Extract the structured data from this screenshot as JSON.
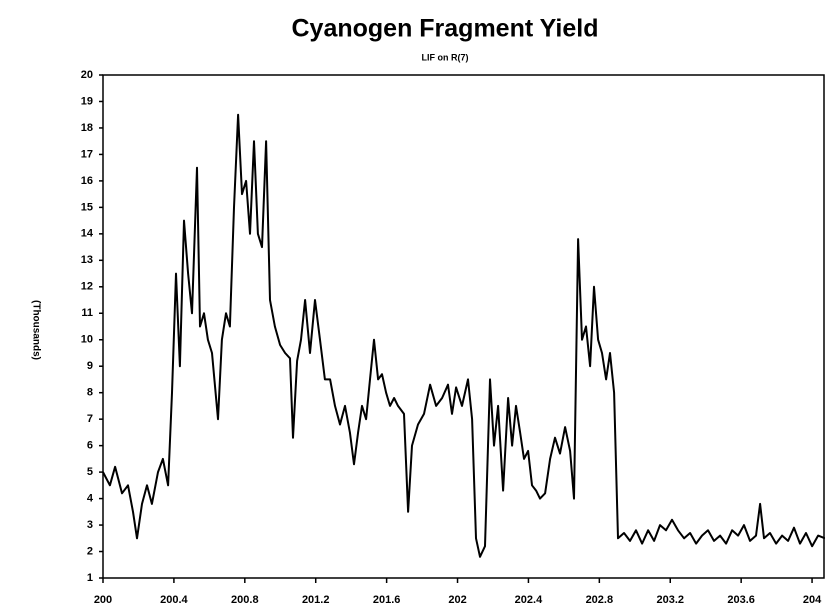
{
  "chart_data": {
    "type": "line",
    "title": "Cyanogen Fragment Yield",
    "subtitle": "LIF on R(7)",
    "y_label": "(Thousands)",
    "xlim": [
      200,
      204.073
    ],
    "ylim": [
      1,
      20
    ],
    "xticks": [
      200,
      200.4,
      200.8,
      201.2,
      201.6,
      202,
      202.4,
      202.8,
      203.2,
      203.6,
      204
    ],
    "yticks": [
      1,
      2,
      3,
      4,
      5,
      6,
      7,
      8,
      9,
      10,
      11,
      12,
      13,
      14,
      15,
      16,
      17,
      18,
      19,
      20
    ],
    "series": [
      {
        "color": "#000000",
        "x": [
          200.0,
          200.039,
          200.068,
          200.107,
          200.141,
          200.169,
          200.192,
          200.22,
          200.248,
          200.276,
          200.31,
          200.338,
          200.367,
          200.389,
          200.412,
          200.434,
          200.457,
          200.48,
          200.502,
          200.53,
          200.547,
          200.57,
          200.592,
          200.615,
          200.649,
          200.671,
          200.694,
          200.716,
          200.739,
          200.762,
          200.784,
          200.807,
          200.829,
          200.852,
          200.874,
          200.897,
          200.92,
          200.942,
          200.97,
          200.999,
          201.027,
          201.055,
          201.072,
          201.095,
          201.117,
          201.14,
          201.168,
          201.196,
          201.224,
          201.252,
          201.281,
          201.309,
          201.337,
          201.365,
          201.393,
          201.416,
          201.439,
          201.461,
          201.484,
          201.506,
          201.529,
          201.552,
          201.574,
          201.597,
          201.619,
          201.642,
          201.664,
          201.698,
          201.721,
          201.743,
          201.777,
          201.811,
          201.845,
          201.879,
          201.913,
          201.946,
          201.969,
          201.992,
          202.025,
          202.059,
          202.082,
          202.104,
          202.127,
          202.155,
          202.183,
          202.206,
          202.229,
          202.257,
          202.285,
          202.308,
          202.33,
          202.353,
          202.375,
          202.398,
          202.42,
          202.443,
          202.465,
          202.494,
          202.522,
          202.55,
          202.578,
          202.607,
          202.635,
          202.657,
          202.68,
          202.702,
          202.725,
          202.748,
          202.77,
          202.793,
          202.815,
          202.838,
          202.86,
          202.883,
          202.905,
          202.939,
          202.973,
          203.007,
          203.041,
          203.075,
          203.109,
          203.142,
          203.176,
          203.21,
          203.244,
          203.278,
          203.312,
          203.346,
          203.379,
          203.413,
          203.447,
          203.481,
          203.515,
          203.549,
          203.583,
          203.616,
          203.65,
          203.684,
          203.707,
          203.729,
          203.763,
          203.797,
          203.831,
          203.865,
          203.898,
          203.932,
          203.966,
          204.0,
          204.034,
          204.073
        ],
        "values": [
          5,
          4.5,
          5.2,
          4.2,
          4.5,
          3.5,
          2.5,
          3.8,
          4.5,
          3.8,
          5,
          5.5,
          4.5,
          8,
          12.5,
          9,
          14.5,
          12.5,
          11,
          16.5,
          10.5,
          11,
          10,
          9.5,
          7,
          10,
          11,
          10.5,
          15,
          18.5,
          15.5,
          16,
          14,
          17.5,
          14,
          13.5,
          17.5,
          11.5,
          10.5,
          9.8,
          9.5,
          9.3,
          6.3,
          9.2,
          10,
          11.5,
          9.5,
          11.5,
          10,
          8.5,
          8.5,
          7.5,
          6.8,
          7.5,
          6.5,
          5.3,
          6.5,
          7.5,
          7,
          8.5,
          10,
          8.5,
          8.7,
          8,
          7.5,
          7.8,
          7.5,
          7.2,
          3.5,
          6,
          6.8,
          7.2,
          8.3,
          7.5,
          7.8,
          8.3,
          7.2,
          8.2,
          7.5,
          8.5,
          7,
          2.5,
          1.8,
          2.2,
          8.5,
          6,
          7.5,
          4.3,
          7.8,
          6,
          7.5,
          6.5,
          5.5,
          5.8,
          4.5,
          4.3,
          4,
          4.2,
          5.5,
          6.3,
          5.7,
          6.7,
          5.8,
          4,
          13.8,
          10,
          10.5,
          9,
          12,
          10,
          9.5,
          8.5,
          9.5,
          8,
          2.5,
          2.7,
          2.4,
          2.8,
          2.3,
          2.8,
          2.4,
          3,
          2.8,
          3.2,
          2.8,
          2.5,
          2.7,
          2.3,
          2.6,
          2.8,
          2.4,
          2.6,
          2.3,
          2.8,
          2.6,
          3,
          2.4,
          2.6,
          3.8,
          2.5,
          2.7,
          2.3,
          2.6,
          2.4,
          2.9,
          2.3,
          2.7,
          2.2,
          2.6,
          2.5
        ]
      }
    ]
  }
}
